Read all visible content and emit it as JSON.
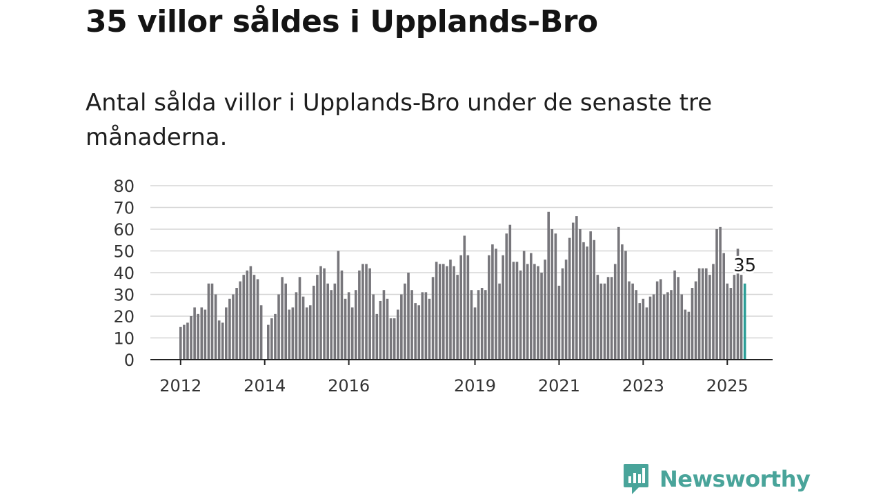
{
  "title": "35 villor såldes i Upplands-Bro",
  "subtitle": "Antal sålda villor i Upplands-Bro under de senaste tre månaderna.",
  "brand": {
    "name": "Newsworthy",
    "icon": "newsworthy-logo-icon",
    "color": "#49a49a"
  },
  "chart_data": {
    "type": "bar",
    "x_start": "2012-01",
    "x_tick_labels": [
      "2012",
      "2014",
      "2016",
      "2019",
      "2021",
      "2023",
      "2025"
    ],
    "y_tick_labels": [
      "0",
      "10",
      "20",
      "30",
      "40",
      "50",
      "60",
      "70",
      "80"
    ],
    "ylim": [
      0,
      80
    ],
    "grid": true,
    "bar_color": "#77767b",
    "highlight_color": "#2a9d96",
    "highlight_label": "35",
    "values": [
      15,
      16,
      17,
      20,
      24,
      21,
      24,
      23,
      35,
      35,
      30,
      18,
      17,
      24,
      28,
      30,
      33,
      36,
      39,
      41,
      43,
      39,
      37,
      25,
      0,
      16,
      19,
      21,
      30,
      38,
      35,
      23,
      24,
      31,
      38,
      29,
      24,
      25,
      34,
      39,
      43,
      42,
      35,
      32,
      35,
      50,
      41,
      28,
      31,
      24,
      32,
      41,
      44,
      44,
      42,
      30,
      21,
      27,
      32,
      28,
      19,
      19,
      23,
      30,
      35,
      40,
      32,
      26,
      25,
      31,
      31,
      28,
      38,
      45,
      44,
      44,
      43,
      46,
      43,
      39,
      48,
      57,
      48,
      32,
      24,
      32,
      33,
      32,
      48,
      53,
      51,
      35,
      48,
      58,
      62,
      45,
      45,
      41,
      50,
      44,
      49,
      44,
      43,
      40,
      46,
      68,
      60,
      58,
      34,
      42,
      46,
      56,
      63,
      66,
      60,
      54,
      52,
      59,
      55,
      39,
      35,
      35,
      38,
      38,
      44,
      61,
      53,
      50,
      36,
      35,
      32,
      26,
      28,
      24,
      29,
      30,
      36,
      37,
      30,
      31,
      32,
      41,
      38,
      30,
      23,
      22,
      33,
      36,
      42,
      42,
      42,
      39,
      44,
      60,
      61,
      49,
      35,
      33,
      39,
      51,
      39,
      35
    ]
  }
}
